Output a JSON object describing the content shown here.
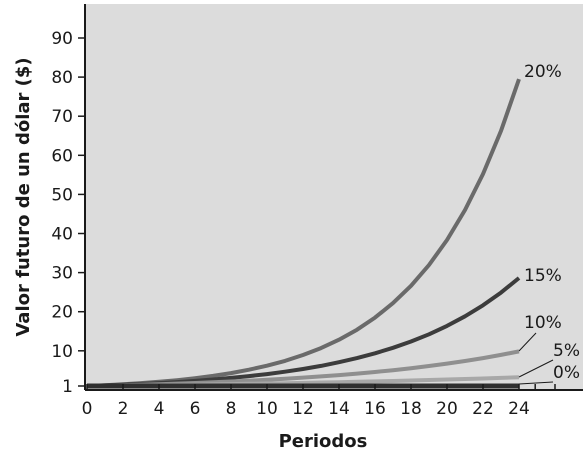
{
  "chart_data": {
    "type": "line",
    "xlabel": "Periodos",
    "ylabel": "Valor futuro de un dólar ($)",
    "xlim": [
      0,
      24
    ],
    "ylim": [
      1,
      90
    ],
    "x_ticks": [
      "0",
      "2",
      "4",
      "6",
      "8",
      "10",
      "12",
      "14",
      "16",
      "18",
      "20",
      "22",
      "24"
    ],
    "y_ticks": [
      "1",
      "10",
      "20",
      "30",
      "40",
      "50",
      "60",
      "70",
      "80",
      "90"
    ],
    "grid": false,
    "plot_background": "#dcdcdc",
    "x": [
      0,
      1,
      2,
      3,
      4,
      5,
      6,
      7,
      8,
      9,
      10,
      11,
      12,
      13,
      14,
      15,
      16,
      17,
      18,
      19,
      20,
      21,
      22,
      23,
      24
    ],
    "series": [
      {
        "name": "20%",
        "color": "#6a6a6a",
        "label_at": [
          24,
          80
        ],
        "values": [
          1.0,
          1.2,
          1.44,
          1.73,
          2.07,
          2.49,
          2.99,
          3.58,
          4.3,
          5.16,
          6.19,
          7.43,
          8.92,
          10.7,
          12.84,
          15.41,
          18.49,
          22.19,
          26.62,
          31.95,
          38.34,
          46.01,
          55.21,
          66.25,
          79.5
        ]
      },
      {
        "name": "15%",
        "color": "#3c3c3c",
        "label_at": [
          24,
          28
        ],
        "values": [
          1.0,
          1.15,
          1.32,
          1.52,
          1.75,
          2.01,
          2.31,
          2.66,
          3.06,
          3.52,
          4.05,
          4.65,
          5.35,
          6.15,
          7.08,
          8.14,
          9.36,
          10.76,
          12.38,
          14.23,
          16.37,
          18.82,
          21.64,
          24.89,
          28.63
        ]
      },
      {
        "name": "10%",
        "color": "#8f8f8f",
        "label_at": [
          24,
          15
        ],
        "values": [
          1.0,
          1.1,
          1.21,
          1.33,
          1.46,
          1.61,
          1.77,
          1.95,
          2.14,
          2.36,
          2.59,
          2.85,
          3.14,
          3.45,
          3.8,
          4.18,
          4.59,
          5.05,
          5.56,
          6.12,
          6.73,
          7.4,
          8.14,
          8.95,
          9.85
        ]
      },
      {
        "name": "5%",
        "color": "#a8a8a8",
        "label_at": [
          24,
          7
        ],
        "values": [
          1.0,
          1.05,
          1.1,
          1.16,
          1.22,
          1.28,
          1.34,
          1.41,
          1.48,
          1.55,
          1.63,
          1.71,
          1.8,
          1.89,
          1.98,
          2.08,
          2.18,
          2.29,
          2.41,
          2.53,
          2.65,
          2.79,
          2.93,
          3.07,
          3.23
        ]
      },
      {
        "name": "0%",
        "color": "#2f2f2f",
        "label_at": [
          24,
          2
        ],
        "values": [
          1,
          1,
          1,
          1,
          1,
          1,
          1,
          1,
          1,
          1,
          1,
          1,
          1,
          1,
          1,
          1,
          1,
          1,
          1,
          1,
          1,
          1,
          1,
          1,
          1
        ]
      }
    ]
  }
}
